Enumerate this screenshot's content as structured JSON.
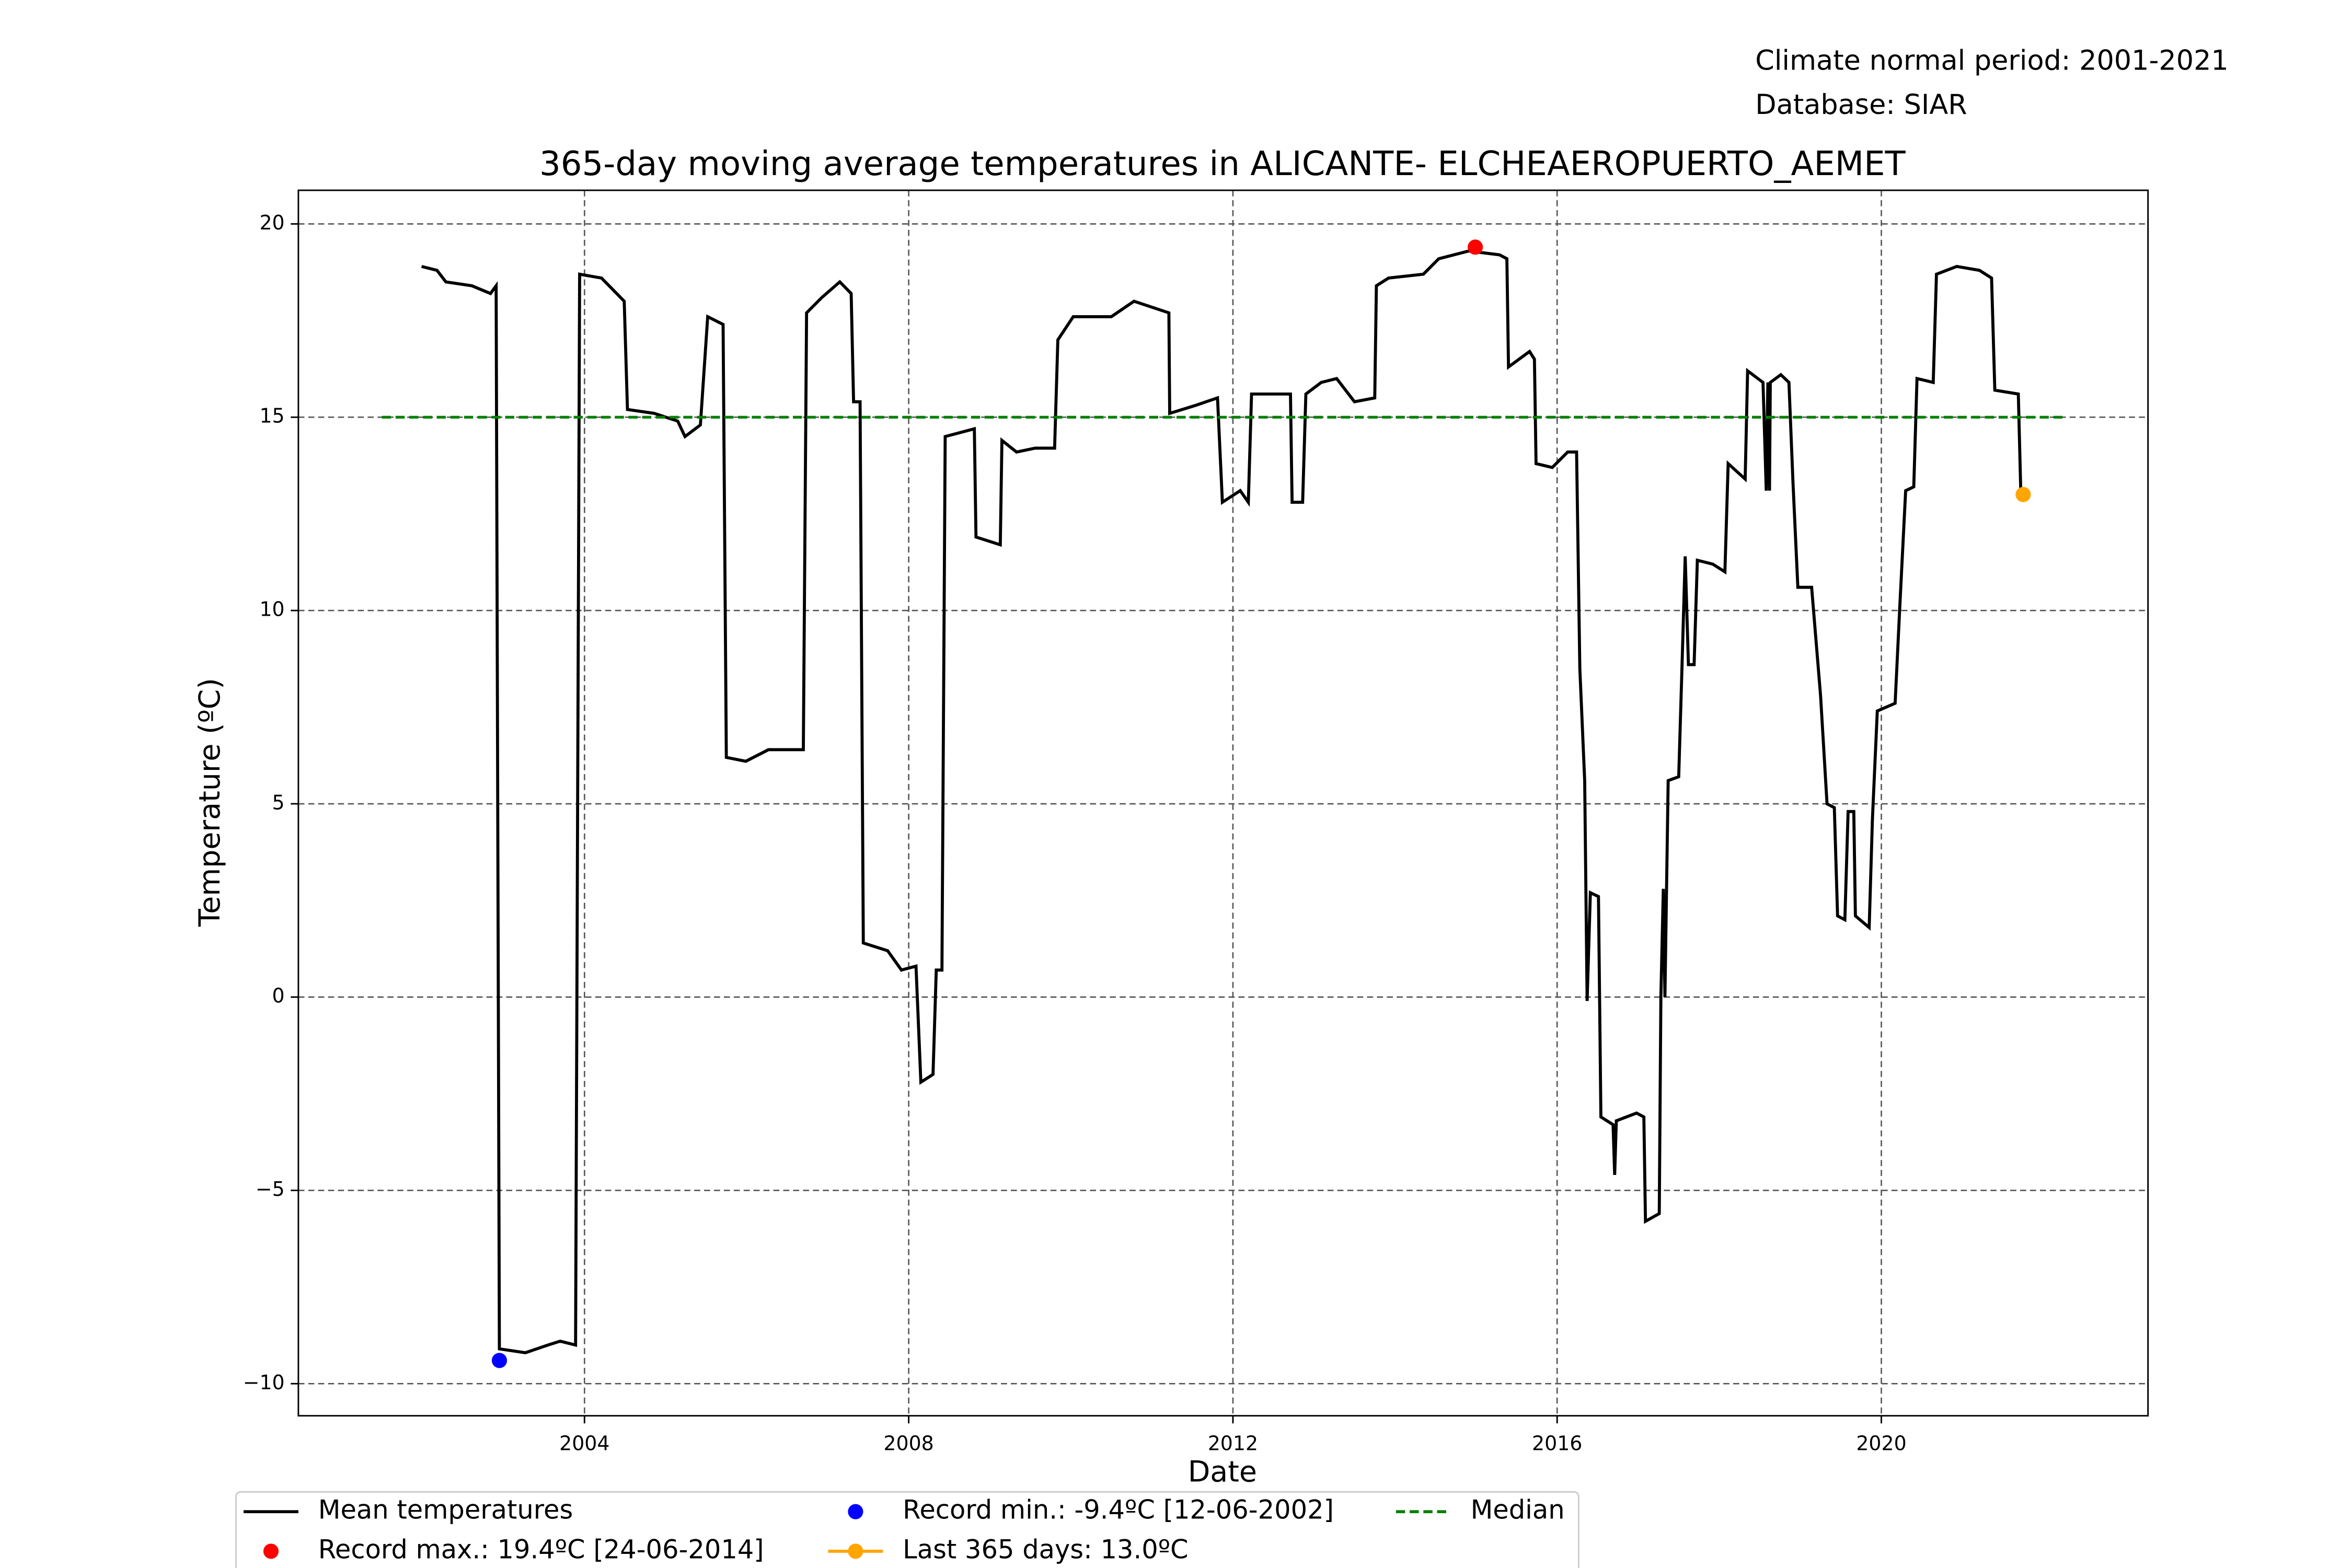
{
  "chart_data": {
    "type": "line",
    "title": "365-day moving average temperatures in ALICANTE- ELCHEAEROPUERTO_AEMET",
    "annotations": [
      "Climate normal period: 2001-2021",
      "Database: SIAR"
    ],
    "xlabel": "Date",
    "ylabel": "Temperature (ºC)",
    "xlim": [
      2000.47,
      2023.29
    ],
    "ylim": [
      -10.83,
      20.87
    ],
    "xticks": [
      2004,
      2008,
      2012,
      2016,
      2020
    ],
    "yticks": [
      {
        "value": -10,
        "label": "−10"
      },
      {
        "value": -5,
        "label": "−5"
      },
      0,
      5,
      10,
      15,
      20
    ],
    "grid": true,
    "legend": "below",
    "series": [
      {
        "name": "Mean temperatures",
        "color": "#000000",
        "mode": "line",
        "x": [
          2001.99,
          2002.18,
          2002.29,
          2002.61,
          2002.84,
          2002.91,
          2002.95,
          2003.27,
          2003.55,
          2003.7,
          2003.89,
          2003.94,
          2004.21,
          2004.49,
          2004.53,
          2004.86,
          2005.15,
          2005.24,
          2005.43,
          2005.52,
          2005.71,
          2005.75,
          2005.99,
          2006.27,
          2006.7,
          2006.74,
          2006.93,
          2007.15,
          2007.29,
          2007.32,
          2007.4,
          2007.44,
          2007.74,
          2007.91,
          2008.09,
          2008.15,
          2008.3,
          2008.34,
          2008.41,
          2008.45,
          2008.81,
          2008.83,
          2009.13,
          2009.15,
          2009.33,
          2009.56,
          2009.8,
          2009.84,
          2010.03,
          2010.5,
          2010.78,
          2011.21,
          2011.22,
          2011.53,
          2011.81,
          2011.87,
          2012.09,
          2012.19,
          2012.23,
          2012.56,
          2012.71,
          2012.73,
          2012.86,
          2012.9,
          2013.09,
          2013.28,
          2013.5,
          2013.75,
          2013.77,
          2013.92,
          2014.35,
          2014.54,
          2014.91,
          2015.29,
          2015.38,
          2015.4,
          2015.66,
          2015.72,
          2015.74,
          2015.94,
          2016.13,
          2016.24,
          2016.28,
          2016.34,
          2016.37,
          2016.41,
          2016.51,
          2016.54,
          2016.69,
          2016.71,
          2016.73,
          2016.98,
          2017.07,
          2017.09,
          2017.26,
          2017.28,
          2017.31,
          2017.33,
          2017.37,
          2017.5,
          2017.54,
          2017.58,
          2017.62,
          2017.69,
          2017.73,
          2017.92,
          2018.07,
          2018.11,
          2018.32,
          2018.35,
          2018.54,
          2018.58,
          2018.6,
          2018.62,
          2018.63,
          2018.76,
          2018.86,
          2018.91,
          2018.97,
          2019.14,
          2019.25,
          2019.33,
          2019.42,
          2019.46,
          2019.55,
          2019.59,
          2019.66,
          2019.68,
          2019.85,
          2019.89,
          2019.95,
          2020.17,
          2020.23,
          2020.3,
          2020.4,
          2020.44,
          2020.64,
          2020.68,
          2020.93,
          2021.21,
          2021.36,
          2021.4,
          2021.69,
          2021.72
        ],
        "values": [
          18.9,
          18.8,
          18.5,
          18.4,
          18.2,
          18.4,
          -9.1,
          -9.2,
          -9.0,
          -8.9,
          -9.0,
          18.7,
          18.6,
          18.0,
          15.2,
          15.1,
          14.9,
          14.5,
          14.8,
          17.6,
          17.4,
          6.2,
          6.1,
          6.4,
          6.4,
          17.7,
          18.1,
          18.5,
          18.2,
          15.4,
          15.4,
          1.4,
          1.2,
          0.7,
          0.8,
          -2.2,
          -2.0,
          0.7,
          0.7,
          14.5,
          14.7,
          11.9,
          11.7,
          14.4,
          14.1,
          14.2,
          14.2,
          17.0,
          17.6,
          17.6,
          18.0,
          17.7,
          15.1,
          15.3,
          15.5,
          12.8,
          13.1,
          12.8,
          15.6,
          15.6,
          15.6,
          12.8,
          12.8,
          15.6,
          15.9,
          16.0,
          15.4,
          15.5,
          18.4,
          18.6,
          18.7,
          19.1,
          19.3,
          19.2,
          19.1,
          16.3,
          16.7,
          16.5,
          13.8,
          13.7,
          14.1,
          14.1,
          8.5,
          5.6,
          -0.1,
          2.7,
          2.6,
          -3.1,
          -3.3,
          -4.6,
          -3.2,
          -3.0,
          -3.1,
          -5.8,
          -5.6,
          0.0,
          2.8,
          0.0,
          5.6,
          5.7,
          8.5,
          11.4,
          8.6,
          8.6,
          11.3,
          11.2,
          11.0,
          13.8,
          13.4,
          16.2,
          15.9,
          13.1,
          15.9,
          13.1,
          15.9,
          16.1,
          15.9,
          13.3,
          10.6,
          10.6,
          7.8,
          5.0,
          4.9,
          2.1,
          2.0,
          4.8,
          4.8,
          2.1,
          1.8,
          4.6,
          7.4,
          7.6,
          10.2,
          13.1,
          13.2,
          16.0,
          15.9,
          18.7,
          18.9,
          18.8,
          18.6,
          15.7,
          15.6,
          13.1
        ]
      },
      {
        "name": "Record max.: 19.4ºC [24-06-2014]",
        "color": "#ff0000",
        "mode": "marker",
        "x": [
          2014.99
        ],
        "values": [
          19.4
        ]
      },
      {
        "name": "Record min.: -9.4ºC [12-06-2002]",
        "color": "#0000ff",
        "mode": "marker",
        "x": [
          2002.95
        ],
        "values": [
          -9.4
        ]
      },
      {
        "name": "Last 365 days: 13.0ºC",
        "color": "#ffa500",
        "mode": "line+marker",
        "x": [
          2021.75
        ],
        "values": [
          13.0
        ]
      },
      {
        "name": "Median",
        "color": "#008000",
        "mode": "dashed",
        "x": [
          2001.5,
          2022.25
        ],
        "values": [
          15,
          15
        ]
      }
    ]
  }
}
